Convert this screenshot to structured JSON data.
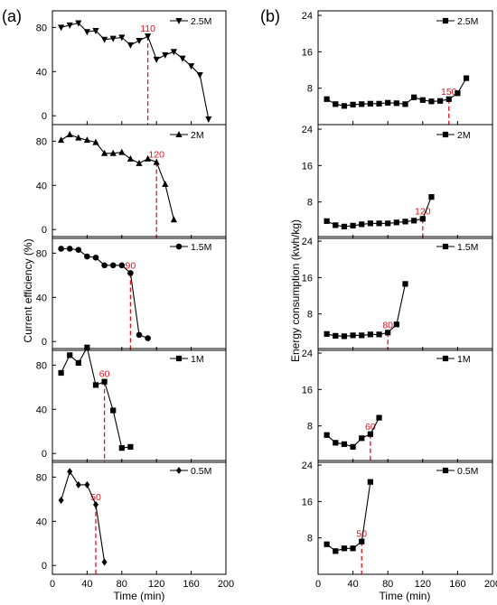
{
  "panel_labels": [
    "(a)",
    "(b)"
  ],
  "colors": {
    "marker_line": "#000000",
    "cutoff": "#e8111a"
  },
  "chart_data": [
    {
      "type": "line",
      "title": "",
      "panel": "(a)",
      "xlabel": "Time (min)",
      "ylabel": "Current efficiency (%)",
      "xlim": [
        0,
        200
      ],
      "xticks": [
        "0",
        "40",
        "80",
        "120",
        "160",
        "200"
      ],
      "ylim": [
        -8,
        95
      ],
      "yticks": [
        "0",
        "40",
        "80"
      ],
      "grid": false,
      "legend_position": "top-right",
      "series": [
        {
          "name": "2.5M",
          "marker": "triangle-down",
          "x": [
            10,
            20,
            30,
            40,
            50,
            60,
            70,
            80,
            90,
            100,
            110,
            120,
            130,
            140,
            150,
            160,
            170,
            180
          ],
          "y": [
            80,
            82,
            84,
            76,
            77,
            69,
            70,
            71,
            64,
            68,
            72,
            51,
            55,
            58,
            52,
            45,
            37,
            -3
          ],
          "cutoff_x": 110,
          "cutoff_y": 72,
          "cutoff_label": "110"
        },
        {
          "name": "2M",
          "marker": "triangle-up",
          "x": [
            10,
            20,
            30,
            40,
            50,
            60,
            70,
            80,
            90,
            100,
            110,
            120,
            130,
            140
          ],
          "y": [
            81,
            86,
            83,
            81,
            79,
            69,
            69,
            70,
            64,
            60,
            64,
            61,
            41,
            9
          ],
          "cutoff_x": 120,
          "cutoff_y": 61,
          "cutoff_label": "120"
        },
        {
          "name": "1.5M",
          "marker": "circle",
          "x": [
            10,
            20,
            30,
            40,
            50,
            60,
            70,
            80,
            90,
            100,
            110
          ],
          "y": [
            84,
            84,
            83,
            77,
            76,
            69,
            69,
            69,
            62,
            6,
            3
          ],
          "cutoff_x": 90,
          "cutoff_y": 62,
          "cutoff_label": "90"
        },
        {
          "name": "1M",
          "marker": "square",
          "x": [
            10,
            20,
            30,
            40,
            50,
            60,
            70,
            80,
            90
          ],
          "y": [
            73,
            89,
            82,
            96,
            62,
            65,
            39,
            5,
            6
          ],
          "cutoff_x": 60,
          "cutoff_y": 65,
          "cutoff_label": "60"
        },
        {
          "name": "0.5M",
          "marker": "diamond",
          "x": [
            10,
            20,
            30,
            40,
            50,
            60
          ],
          "y": [
            59,
            85,
            73,
            73,
            55,
            3
          ],
          "cutoff_x": 50,
          "cutoff_y": 55,
          "cutoff_label": "50"
        }
      ]
    },
    {
      "type": "line",
      "title": "",
      "panel": "(b)",
      "xlabel": "Time (min)",
      "ylabel": "Energy consumption (kwh/kg)",
      "xlim": [
        0,
        200
      ],
      "xticks": [
        "0",
        "40",
        "80",
        "120",
        "160",
        "200"
      ],
      "ylim": [
        0,
        25
      ],
      "yticks": [
        "8",
        "16",
        "24"
      ],
      "grid": false,
      "legend_position": "top-right",
      "series": [
        {
          "name": "2.5M",
          "marker": "square",
          "x": [
            10,
            20,
            30,
            40,
            50,
            60,
            70,
            80,
            90,
            100,
            110,
            120,
            130,
            140,
            150,
            160,
            170
          ],
          "y": [
            5.6,
            4.5,
            4.1,
            4.4,
            4.5,
            4.6,
            4.6,
            4.8,
            4.7,
            4.5,
            6,
            5.4,
            5.1,
            5.2,
            5.6,
            6.9,
            10.2
          ],
          "cutoff_x": 150,
          "cutoff_y": 5.6,
          "cutoff_label": "150"
        },
        {
          "name": "2M",
          "marker": "square",
          "x": [
            10,
            20,
            30,
            40,
            50,
            60,
            70,
            80,
            90,
            100,
            110,
            120,
            130
          ],
          "y": [
            3.8,
            2.9,
            2.6,
            2.8,
            3.1,
            3.3,
            3.3,
            3.3,
            3.5,
            3.7,
            3.9,
            4.3,
            9.1
          ],
          "cutoff_x": 120,
          "cutoff_y": 4.3,
          "cutoff_label": "120"
        },
        {
          "name": "1.5M",
          "marker": "square",
          "x": [
            10,
            20,
            30,
            40,
            50,
            60,
            70,
            80,
            90,
            100
          ],
          "y": [
            3.6,
            3.2,
            3.1,
            3.3,
            3.3,
            3.5,
            3.5,
            3.9,
            5.7,
            14.6
          ],
          "cutoff_x": 80,
          "cutoff_y": 3.9,
          "cutoff_label": "80"
        },
        {
          "name": "1M",
          "marker": "square",
          "x": [
            10,
            20,
            30,
            40,
            50,
            60,
            70
          ],
          "y": [
            6,
            4.3,
            4,
            3.4,
            5.3,
            6.2,
            9.8
          ],
          "cutoff_x": 60,
          "cutoff_y": 6.2,
          "cutoff_label": "60"
        },
        {
          "name": "0.5M",
          "marker": "square",
          "x": [
            10,
            20,
            30,
            40,
            50,
            60
          ],
          "y": [
            6.6,
            5.1,
            5.7,
            5.7,
            7.2,
            20.3
          ],
          "cutoff_x": 50,
          "cutoff_y": 7.2,
          "cutoff_label": "50"
        }
      ]
    }
  ]
}
